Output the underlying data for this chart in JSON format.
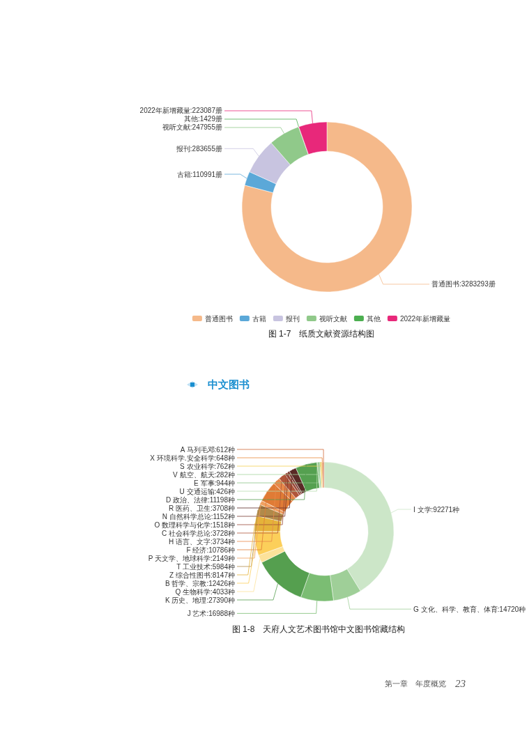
{
  "chart_data": [
    {
      "type": "donut",
      "title": "图 1-7　纸质文献资源结构图",
      "categories": [
        "普通图书",
        "古籍",
        "报刊",
        "视听文献",
        "其他",
        "2022年新增藏量"
      ],
      "values": [
        3283293,
        110991,
        283655,
        247955,
        1429,
        223087
      ],
      "value_labels": [
        ":3283293册",
        ":110991册",
        ":283655册",
        ":247955册",
        ":1429册",
        ":223087册"
      ],
      "colors": [
        "#f5b98a",
        "#5ba8d8",
        "#c8c4e0",
        "#90c98a",
        "#4caf50",
        "#e8287a"
      ],
      "legend": "bottom"
    },
    {
      "type": "donut",
      "title": "图 1-8　天府人文艺术图书馆中文图书馆藏结构",
      "annotations": [
        "中文图书",
        "第一章　年度概览",
        "23"
      ],
      "categories": [
        "I 文学",
        "G 文化、科学、教育、体育",
        "J 艺术",
        "K 历史、地理",
        "Q 生物科学",
        "B 哲学、宗教",
        "Z 综合性图书",
        "T 工业技术",
        "P 天文学、地球科学",
        "F 经济",
        "H 语言、文字",
        "C 社会科学总论",
        "O 数理科学与化学",
        "N 自然科学总论",
        "R 医药、卫生",
        "D 政治、法律",
        "U 交通运输",
        "E 军事",
        "V 航空、航天",
        "S 农业科学",
        "X 环境科学.安全科学",
        "A 马列毛邓"
      ],
      "values": [
        92271,
        14720,
        16988,
        27390,
        4033,
        12426,
        8147,
        5984,
        2149,
        10786,
        3734,
        3728,
        1518,
        1152,
        3708,
        11198,
        426,
        944,
        282,
        762,
        648,
        612
      ],
      "value_labels": [
        ":92271种",
        ":14720种",
        ":16988种",
        ":27390种",
        ":4033种",
        ":12426种",
        ":8147种",
        ":5984种",
        ":2149种",
        ":10786种",
        ":3734种",
        ":3728种",
        ":1518种",
        ":1152种",
        ":3708种",
        ":11198种",
        ":426种",
        ":944种",
        ":282种",
        ":762种",
        ":648种",
        ":612种"
      ],
      "colors": [
        "#cce6c8",
        "#9fcf98",
        "#7bbd73",
        "#559f4f",
        "#fce29a",
        "#fccf5a",
        "#e5b33a",
        "#b08a4a",
        "#f0a060",
        "#e07b35",
        "#e8894a",
        "#b0563a",
        "#9a4a3a",
        "#7a3a30",
        "#5a2a26",
        "#55a050",
        "#b8dcb0",
        "#8cc488",
        "#a6d4a0",
        "#f2d050",
        "#e8883a",
        "#d06a3a"
      ],
      "legend": false
    }
  ]
}
